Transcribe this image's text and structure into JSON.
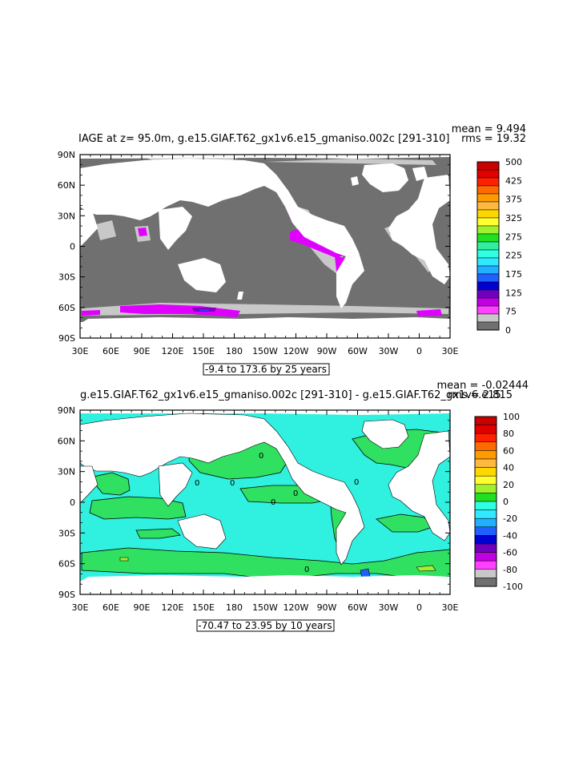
{
  "map1": {
    "title": "IAGE at z=  95.0m, g.e15.GIAF.T62_gx1v6.e15_gmaniso.002c [291-310]",
    "mean_label": "mean = 9.494",
    "rms_label": "rms = 19.32",
    "range_label": "-9.4 to 173.6 by 25 years",
    "lat_ticks": [
      "90N",
      "60N",
      "30N",
      "0",
      "30S",
      "60S",
      "90S"
    ],
    "lon_ticks": [
      "30E",
      "60E",
      "90E",
      "120E",
      "150E",
      "180",
      "150W",
      "120W",
      "90W",
      "60W",
      "30W",
      "0",
      "30E"
    ],
    "colorbar_labels": [
      "500",
      "425",
      "375",
      "325",
      "275",
      "225",
      "175",
      "125",
      "75",
      "0"
    ],
    "colorbar_colors": [
      "#c80000",
      "#e00000",
      "#ff2000",
      "#ff6a00",
      "#ff9a00",
      "#ffb840",
      "#ffd700",
      "#ffff30",
      "#a0f030",
      "#20e020",
      "#30f0a0",
      "#30ffe0",
      "#30e8ff",
      "#20b0ff",
      "#2060ff",
      "#0000d0",
      "#7000c0",
      "#c000e0",
      "#ff40ff",
      "#c8c8c8",
      "#707070"
    ],
    "ocean_color": "#707070"
  },
  "map2": {
    "title": "g.e15.GIAF.T62_gx1v6.e15_gmaniso.002c [291-310] - g.e15.GIAF.T62_gx1v6.e15",
    "mean_label": "mean = -0.02444",
    "rms_label": "rms = 2.815",
    "range_label": "-70.47 to 23.95 by 10 years",
    "lat_ticks": [
      "90N",
      "60N",
      "30N",
      "0",
      "30S",
      "60S",
      "90S"
    ],
    "lon_ticks": [
      "30E",
      "60E",
      "90E",
      "120E",
      "150E",
      "180",
      "150W",
      "120W",
      "90W",
      "60W",
      "30W",
      "0",
      "30E"
    ],
    "colorbar_labels": [
      "100",
      "80",
      "60",
      "40",
      "20",
      "0",
      "-20",
      "-40",
      "-60",
      "-80",
      "-100"
    ],
    "colorbar_colors": [
      "#c80000",
      "#e00000",
      "#ff2000",
      "#ff6a00",
      "#ff9a00",
      "#ffb840",
      "#ffd700",
      "#ffff30",
      "#a0f030",
      "#20e020",
      "#30ffe0",
      "#30e8ff",
      "#20b0ff",
      "#2060ff",
      "#0000d0",
      "#7000c0",
      "#c000e0",
      "#ff40ff",
      "#c8c8c8",
      "#707070"
    ],
    "ocean_color": "#30f0e0",
    "contour_label": "0"
  }
}
